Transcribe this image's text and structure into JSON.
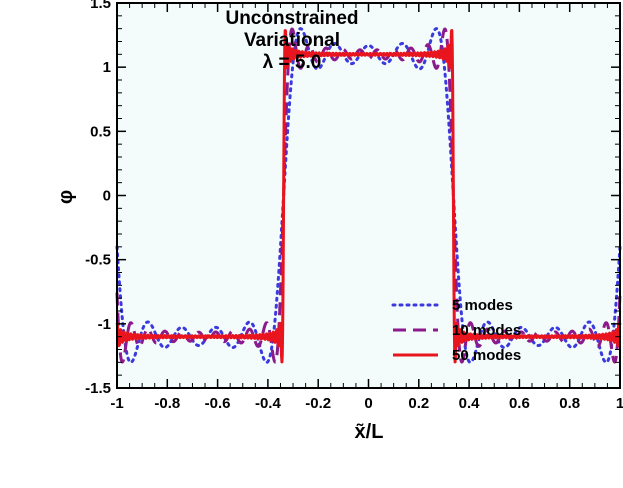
{
  "chart_data": {
    "type": "line",
    "title": "",
    "annotation": [
      "Unconstrained",
      "Variational",
      "λ = 5.0"
    ],
    "xlabel": "x̃/L",
    "ylabel": "φ",
    "xlim": [
      -1,
      1
    ],
    "ylim": [
      -1.5,
      1.5
    ],
    "xticks": [
      -1,
      -0.8,
      -0.6,
      -0.4,
      -0.2,
      0,
      0.2,
      0.4,
      0.6,
      0.8,
      1
    ],
    "xtick_labels": [
      "-1",
      "-0.8",
      "-0.6",
      "-0.4",
      "-0.2",
      "0",
      "0.2",
      "0.4",
      "0.6",
      "0.8",
      "1"
    ],
    "yticks": [
      -1.5,
      -1,
      -0.5,
      0,
      0.5,
      1,
      1.5
    ],
    "ytick_labels": [
      "-1.5",
      "-1",
      "-0.5",
      "0",
      "0.5",
      "1",
      "1.5"
    ],
    "plot_background": "#f3fbfb",
    "grid": false,
    "legend_position": "bottom-right",
    "series": [
      {
        "name": "5 modes",
        "modes": 5,
        "color": "#3a3adf",
        "style": "dotted"
      },
      {
        "name": "10 modes",
        "modes": 10,
        "color": "#8b1a8b",
        "style": "dashed"
      },
      {
        "name": "50 modes",
        "modes": 50,
        "color": "#e8141e",
        "style": "solid"
      }
    ],
    "wave": {
      "amplitude": 1.1,
      "period": 1.35,
      "edge": 0.675
    }
  }
}
